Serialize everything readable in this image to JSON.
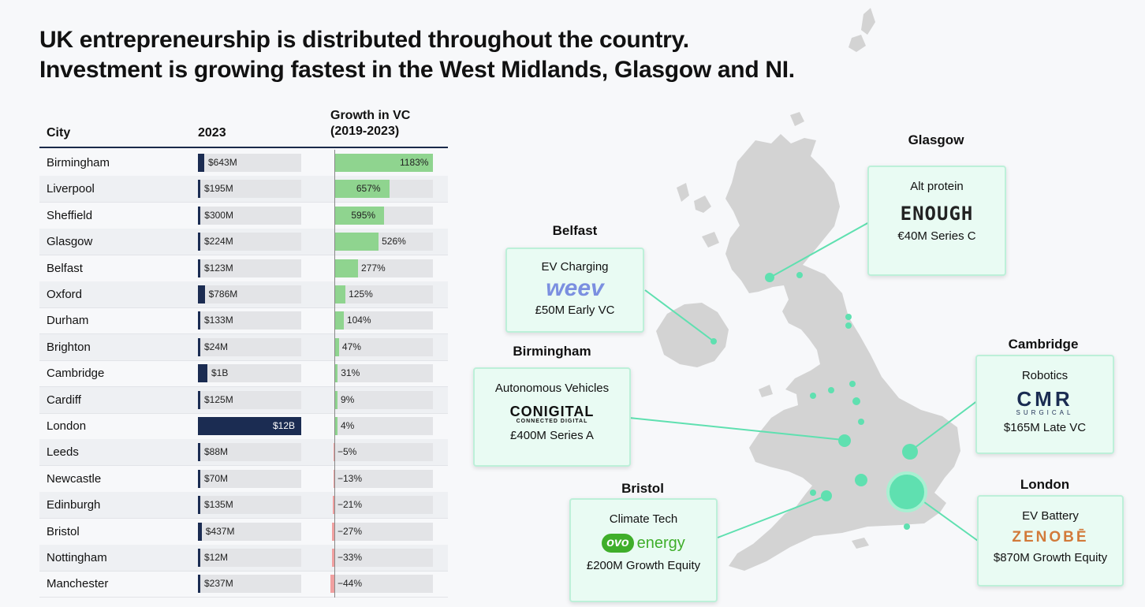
{
  "title_lines": [
    "UK entrepreneurship is distributed throughout the country.",
    "Investment is growing fastest in the West Midlands, Glasgow and NI."
  ],
  "table": {
    "headers": {
      "city": "City",
      "investment": "2023",
      "growth_line1": "Growth in VC",
      "growth_line2": "(2019-2023)"
    }
  },
  "chart_data": {
    "type": "table",
    "columns": [
      "City",
      "2023",
      "Growth in VC (2019-2023)"
    ],
    "unit_investment": "USD millions",
    "unit_growth": "percent",
    "rows": [
      {
        "city": "Birmingham",
        "investment_musd": 643,
        "investment_label": "$643M",
        "growth_pct": 1183,
        "growth_label": "1183%"
      },
      {
        "city": "Liverpool",
        "investment_musd": 195,
        "investment_label": "$195M",
        "growth_pct": 657,
        "growth_label": "657%"
      },
      {
        "city": "Sheffield",
        "investment_musd": 300,
        "investment_label": "$300M",
        "growth_pct": 595,
        "growth_label": "595%"
      },
      {
        "city": "Glasgow",
        "investment_musd": 224,
        "investment_label": "$224M",
        "growth_pct": 526,
        "growth_label": "526%"
      },
      {
        "city": "Belfast",
        "investment_musd": 123,
        "investment_label": "$123M",
        "growth_pct": 277,
        "growth_label": "277%"
      },
      {
        "city": "Oxford",
        "investment_musd": 786,
        "investment_label": "$786M",
        "growth_pct": 125,
        "growth_label": "125%"
      },
      {
        "city": "Durham",
        "investment_musd": 133,
        "investment_label": "$133M",
        "growth_pct": 104,
        "growth_label": "104%"
      },
      {
        "city": "Brighton",
        "investment_musd": 24,
        "investment_label": "$24M",
        "growth_pct": 47,
        "growth_label": "47%"
      },
      {
        "city": "Cambridge",
        "investment_musd": 1000,
        "investment_label": "$1B",
        "growth_pct": 31,
        "growth_label": "31%"
      },
      {
        "city": "Cardiff",
        "investment_musd": 125,
        "investment_label": "$125M",
        "growth_pct": 9,
        "growth_label": "9%"
      },
      {
        "city": "London",
        "investment_musd": 12000,
        "investment_label": "$12B",
        "growth_pct": 4,
        "growth_label": "4%"
      },
      {
        "city": "Leeds",
        "investment_musd": 88,
        "investment_label": "$88M",
        "growth_pct": -5,
        "growth_label": "−5%"
      },
      {
        "city": "Newcastle",
        "investment_musd": 70,
        "investment_label": "$70M",
        "growth_pct": -13,
        "growth_label": "−13%"
      },
      {
        "city": "Edinburgh",
        "investment_musd": 135,
        "investment_label": "$135M",
        "growth_pct": -21,
        "growth_label": "−21%"
      },
      {
        "city": "Bristol",
        "investment_musd": 437,
        "investment_label": "$437M",
        "growth_pct": -27,
        "growth_label": "−27%"
      },
      {
        "city": "Nottingham",
        "investment_musd": 12,
        "investment_label": "$12M",
        "growth_pct": -33,
        "growth_label": "−33%"
      },
      {
        "city": "Manchester",
        "investment_musd": 237,
        "investment_label": "$237M",
        "growth_pct": -44,
        "growth_label": "−44%"
      }
    ]
  },
  "map": {
    "callouts": [
      {
        "city": "Glasgow",
        "sector": "Alt protein",
        "logo": "ENOUGH",
        "deal": "€40M Series C"
      },
      {
        "city": "Belfast",
        "sector": "EV Charging",
        "logo": "weev",
        "deal": "£50M Early VC"
      },
      {
        "city": "Birmingham",
        "sector": "Autonomous Vehicles",
        "logo": "CONIGITAL",
        "logo_sub": "CONNECTED DIGITAL",
        "deal": "£400M Series A"
      },
      {
        "city": "Cambridge",
        "sector": "Robotics",
        "logo": "CMR",
        "logo_sub": "SURGICAL",
        "deal": "$165M Late VC"
      },
      {
        "city": "Bristol",
        "sector": "Climate Tech",
        "logo": "ovo",
        "logo_sub": "energy",
        "deal": "£200M Growth Equity"
      },
      {
        "city": "London",
        "sector": "EV Battery",
        "logo": "ZENOBĒ",
        "deal": "$870M Growth Equity"
      }
    ]
  },
  "colors": {
    "investment_bar": "#1b2c52",
    "growth_positive": "#8fd48f",
    "growth_negative": "#f0a0a0",
    "track": "#e3e4e7",
    "map_land": "#d3d3d3",
    "city_dot": "#5fe0b0",
    "callout_bg": "#e9fbf3",
    "logo_weev": "#7b8fe0",
    "logo_zenobe": "#d27a3a",
    "logo_ovo": "#3fae2a"
  }
}
